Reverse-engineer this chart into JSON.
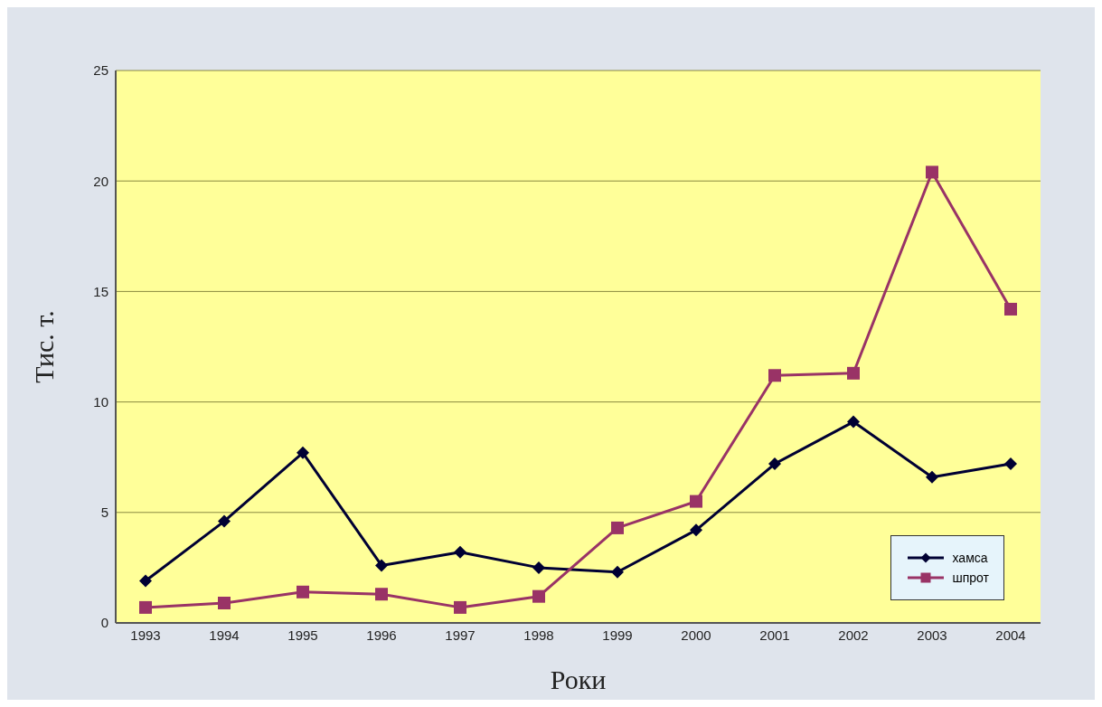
{
  "chart_data": {
    "type": "line",
    "xlabel": "Роки",
    "ylabel": "Тис. т.",
    "categories": [
      "1993",
      "1994",
      "1995",
      "1996",
      "1997",
      "1998",
      "1999",
      "2000",
      "2001",
      "2002",
      "2003",
      "2004"
    ],
    "series": [
      {
        "name": "хамса",
        "color": "#000033",
        "marker": "diamond",
        "values": [
          1.9,
          4.6,
          7.7,
          2.6,
          3.2,
          2.5,
          2.3,
          4.2,
          7.2,
          9.1,
          6.6,
          7.2
        ]
      },
      {
        "name": "шпрот",
        "color": "#993366",
        "marker": "square",
        "values": [
          0.7,
          0.9,
          1.4,
          1.3,
          0.7,
          1.2,
          4.3,
          5.5,
          11.2,
          11.3,
          20.4,
          14.2
        ]
      }
    ],
    "ylim": [
      0,
      25
    ],
    "yticks": [
      0,
      5,
      10,
      15,
      20,
      25
    ],
    "grid": "y",
    "legend": "bottom right",
    "line_style": "solid"
  }
}
